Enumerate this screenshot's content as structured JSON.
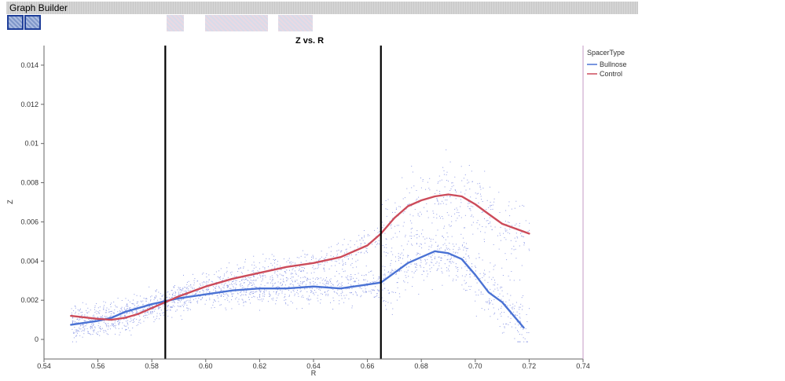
{
  "window": {
    "title": "Graph Builder"
  },
  "chart_data": {
    "type": "line",
    "title": "Z vs. R",
    "xlabel": "R",
    "ylabel": "Z",
    "xlim": [
      0.54,
      0.74
    ],
    "ylim": [
      -0.001,
      0.015
    ],
    "x_ticks": [
      "0.54",
      "0.56",
      "0.58",
      "0.60",
      "0.62",
      "0.64",
      "0.66",
      "0.68",
      "0.70",
      "0.72",
      "0.74"
    ],
    "x_tick_values": [
      0.54,
      0.56,
      0.58,
      0.6,
      0.62,
      0.64,
      0.66,
      0.68,
      0.7,
      0.72,
      0.74
    ],
    "y_ticks": [
      "0",
      "0.002",
      "0.004",
      "0.006",
      "0.008",
      "0.01",
      "0.012",
      "0.014"
    ],
    "y_tick_values": [
      0,
      0.002,
      0.004,
      0.006,
      0.008,
      0.01,
      0.012,
      0.014
    ],
    "vertical_lines": [
      0.585,
      0.665
    ],
    "legend": {
      "title": "SpacerType",
      "position": "right"
    },
    "series": [
      {
        "name": "Bullnose",
        "color": "#4a72d4",
        "x": [
          0.55,
          0.56,
          0.565,
          0.57,
          0.575,
          0.58,
          0.585,
          0.59,
          0.6,
          0.61,
          0.62,
          0.63,
          0.64,
          0.65,
          0.66,
          0.665,
          0.67,
          0.675,
          0.68,
          0.685,
          0.69,
          0.695,
          0.7,
          0.705,
          0.71,
          0.718
        ],
        "y": [
          0.00075,
          0.00095,
          0.0011,
          0.0014,
          0.0016,
          0.0018,
          0.00195,
          0.0021,
          0.0023,
          0.0025,
          0.0026,
          0.0026,
          0.0027,
          0.0026,
          0.0028,
          0.0029,
          0.0034,
          0.0039,
          0.0042,
          0.0045,
          0.0044,
          0.0041,
          0.0033,
          0.0024,
          0.0019,
          0.0006
        ]
      },
      {
        "name": "Control",
        "color": "#cc4b5a",
        "x": [
          0.55,
          0.56,
          0.565,
          0.57,
          0.575,
          0.58,
          0.585,
          0.59,
          0.6,
          0.61,
          0.62,
          0.63,
          0.64,
          0.65,
          0.66,
          0.665,
          0.67,
          0.675,
          0.68,
          0.685,
          0.69,
          0.695,
          0.7,
          0.705,
          0.71,
          0.72
        ],
        "y": [
          0.0012,
          0.00105,
          0.001,
          0.0011,
          0.0013,
          0.0016,
          0.0019,
          0.0022,
          0.0027,
          0.0031,
          0.0034,
          0.0037,
          0.0039,
          0.0042,
          0.0048,
          0.0054,
          0.0062,
          0.0068,
          0.0071,
          0.0073,
          0.0074,
          0.0073,
          0.0069,
          0.0064,
          0.0059,
          0.0054
        ]
      }
    ],
    "scatter_color": "#8f9ce6"
  }
}
